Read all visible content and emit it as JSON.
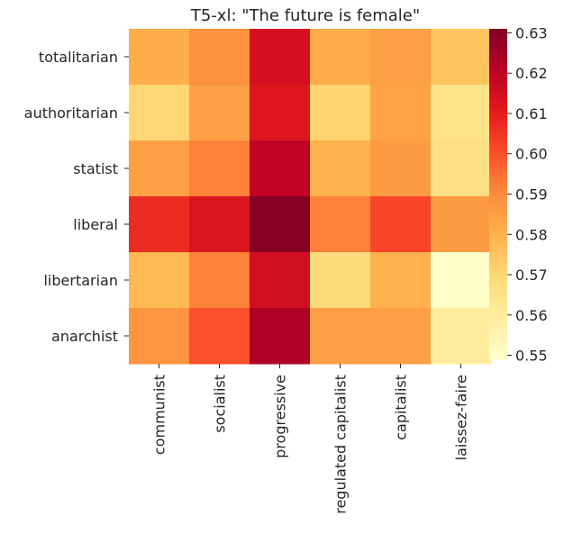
{
  "chart_data": {
    "type": "heatmap",
    "title": "T5-xl: \"The future is female\"",
    "x_categories": [
      "communist",
      "socialist",
      "progressive",
      "regulated capitalist",
      "capitalist",
      "laissez-faire"
    ],
    "y_categories": [
      "totalitarian",
      "authoritarian",
      "statist",
      "liberal",
      "libertarian",
      "anarchist"
    ],
    "values": [
      [
        0.581,
        0.589,
        0.614,
        0.581,
        0.585,
        0.575
      ],
      [
        0.57,
        0.585,
        0.612,
        0.571,
        0.584,
        0.565
      ],
      [
        0.585,
        0.592,
        0.62,
        0.58,
        0.586,
        0.566
      ],
      [
        0.607,
        0.613,
        0.63,
        0.592,
        0.602,
        0.586
      ],
      [
        0.578,
        0.592,
        0.615,
        0.568,
        0.58,
        0.55
      ],
      [
        0.588,
        0.6,
        0.623,
        0.585,
        0.585,
        0.56
      ]
    ],
    "colorbar": {
      "min": 0.549,
      "max": 0.631,
      "ticks": [
        "0.55",
        "0.56",
        "0.57",
        "0.58",
        "0.59",
        "0.60",
        "0.61",
        "0.62",
        "0.63"
      ],
      "colormap": "YlOrRd"
    },
    "xlabel": "",
    "ylabel": "",
    "grid": false
  }
}
